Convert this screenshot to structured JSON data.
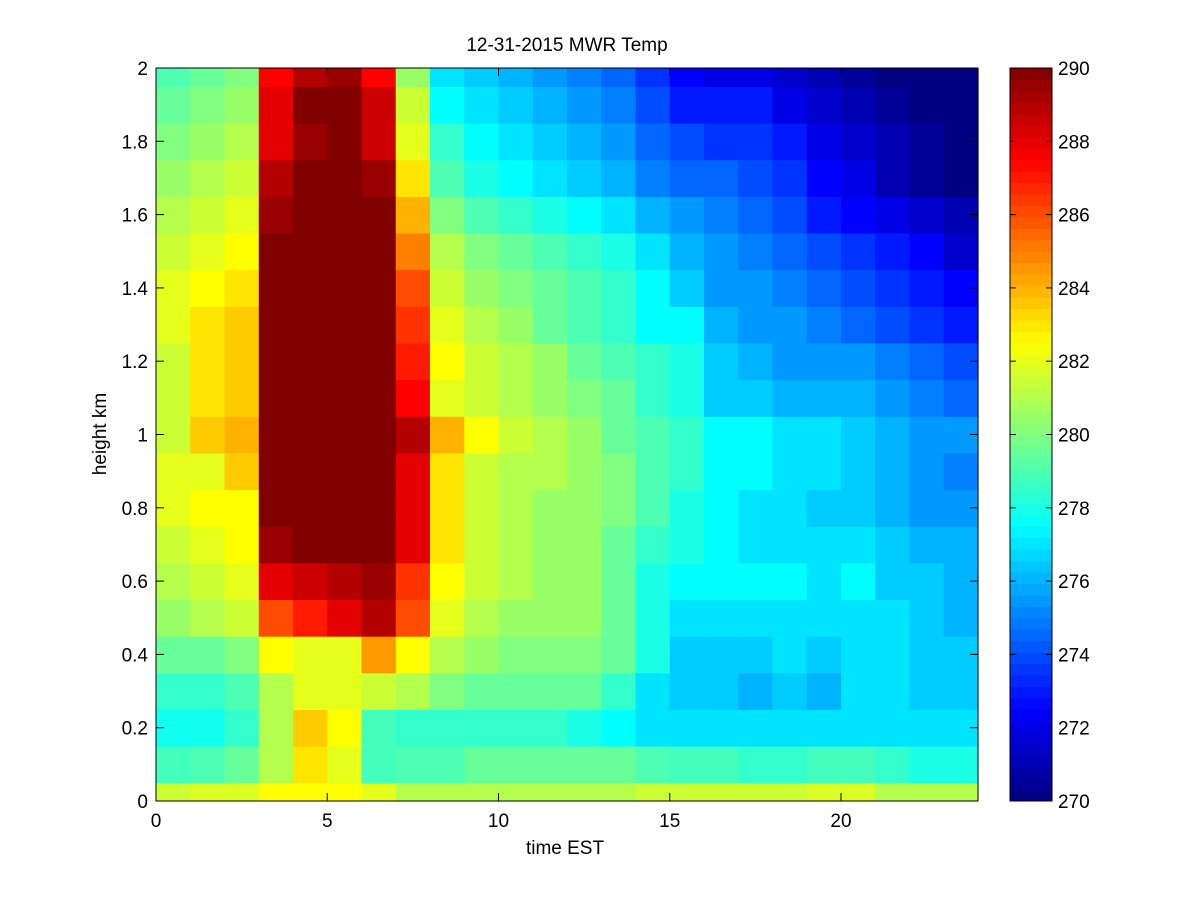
{
  "chart_data": {
    "type": "heatmap",
    "title": "12-31-2015 MWR Temp",
    "xlabel": "time EST",
    "ylabel": "height km",
    "xlim": [
      0,
      24
    ],
    "ylim": [
      0,
      2
    ],
    "xticks": [
      0,
      5,
      10,
      15,
      20
    ],
    "yticks": [
      0,
      0.2,
      0.4,
      0.6,
      0.8,
      1,
      1.2,
      1.4,
      1.6,
      1.8,
      2
    ],
    "colormap": "jet",
    "clim": [
      270,
      290
    ],
    "colorbar_ticks": [
      270,
      272,
      274,
      276,
      278,
      280,
      282,
      284,
      286,
      288,
      290
    ],
    "colorbar_position": "right",
    "grid": false,
    "x_start": 0.0,
    "x_step": 1.0,
    "x_count": 24,
    "y_edges": [
      0,
      0.05,
      0.15,
      0.25,
      0.35,
      0.45,
      0.55,
      0.65,
      0.75,
      0.85,
      0.95,
      1.05,
      1.15,
      1.25,
      1.35,
      1.45,
      1.55,
      1.65,
      1.75,
      1.85,
      1.95,
      2.0
    ],
    "values_by_height_bottom_to_top": [
      [
        281.5,
        281.8,
        281.8,
        282.5,
        282.5,
        282.5,
        282.0,
        281.0,
        281.0,
        281.0,
        281.0,
        281.0,
        281.0,
        281.0,
        281.5,
        281.5,
        281.5,
        281.5,
        281.5,
        281.8,
        281.8,
        281.0,
        281.0,
        281.0
      ],
      [
        278.8,
        279.0,
        279.5,
        281.0,
        283.0,
        282.0,
        278.8,
        279.0,
        279.0,
        279.5,
        279.5,
        279.5,
        279.5,
        279.5,
        279.0,
        278.8,
        278.8,
        278.5,
        278.5,
        278.8,
        278.8,
        278.5,
        278.0,
        278.0
      ],
      [
        277.8,
        277.8,
        278.5,
        281.0,
        283.5,
        282.5,
        278.8,
        278.5,
        278.5,
        278.5,
        278.5,
        278.5,
        278.0,
        277.5,
        277.0,
        277.0,
        277.0,
        277.0,
        277.0,
        277.0,
        277.0,
        277.0,
        277.0,
        277.0
      ],
      [
        278.5,
        278.5,
        279.0,
        281.0,
        282.0,
        282.0,
        281.5,
        281.0,
        280.0,
        279.5,
        279.5,
        279.5,
        279.5,
        278.5,
        277.0,
        276.5,
        276.5,
        276.0,
        276.5,
        276.0,
        277.0,
        277.0,
        276.5,
        276.5
      ],
      [
        279.5,
        279.5,
        280.0,
        282.5,
        282.0,
        282.0,
        284.5,
        282.5,
        281.0,
        280.5,
        280.0,
        280.0,
        280.0,
        279.5,
        278.0,
        276.5,
        276.5,
        276.5,
        277.0,
        276.5,
        277.0,
        277.0,
        276.5,
        276.5
      ],
      [
        280.5,
        281.0,
        281.5,
        286.0,
        287.0,
        288.0,
        289.0,
        286.0,
        282.0,
        281.0,
        280.5,
        280.5,
        280.5,
        279.5,
        278.0,
        277.0,
        277.0,
        277.0,
        277.0,
        277.0,
        277.0,
        277.0,
        276.5,
        276.0
      ],
      [
        281.0,
        281.5,
        282.0,
        288.0,
        288.5,
        289.0,
        289.5,
        286.5,
        282.5,
        281.5,
        281.0,
        280.5,
        280.5,
        279.5,
        278.0,
        277.5,
        277.5,
        277.5,
        277.5,
        277.0,
        277.5,
        276.5,
        276.5,
        276.0
      ],
      [
        281.5,
        282.0,
        282.5,
        289.5,
        290.0,
        290.0,
        290.0,
        288.0,
        283.0,
        281.5,
        281.0,
        280.5,
        280.5,
        279.5,
        278.5,
        278.0,
        277.5,
        277.0,
        277.0,
        277.0,
        277.0,
        276.5,
        276.0,
        276.0
      ],
      [
        282.0,
        282.5,
        282.5,
        290.0,
        290.0,
        290.0,
        290.0,
        288.0,
        283.0,
        281.5,
        281.0,
        280.5,
        280.5,
        280.0,
        279.0,
        278.0,
        277.5,
        277.0,
        277.0,
        276.5,
        276.5,
        276.0,
        275.5,
        275.5
      ],
      [
        282.0,
        282.0,
        283.5,
        290.0,
        290.0,
        290.0,
        290.0,
        288.0,
        283.0,
        281.5,
        281.0,
        281.0,
        280.5,
        280.0,
        279.0,
        278.5,
        277.5,
        277.5,
        277.0,
        277.0,
        276.5,
        276.0,
        275.5,
        275.0
      ],
      [
        281.5,
        283.5,
        284.0,
        290.0,
        290.0,
        290.0,
        290.0,
        289.0,
        284.0,
        282.5,
        281.5,
        281.0,
        280.5,
        279.5,
        279.0,
        278.5,
        277.5,
        277.5,
        277.0,
        277.0,
        276.5,
        276.0,
        275.5,
        275.5
      ],
      [
        281.5,
        283.0,
        283.5,
        290.0,
        290.0,
        290.0,
        290.0,
        287.5,
        282.0,
        281.5,
        281.0,
        280.5,
        280.0,
        279.5,
        278.5,
        278.0,
        276.5,
        276.5,
        276.0,
        276.0,
        276.0,
        275.5,
        275.0,
        274.5
      ],
      [
        281.5,
        283.0,
        283.5,
        290.0,
        290.0,
        290.0,
        290.0,
        287.0,
        282.5,
        281.5,
        281.0,
        280.5,
        279.5,
        279.0,
        278.5,
        278.0,
        276.5,
        276.0,
        275.5,
        275.5,
        275.5,
        275.0,
        274.5,
        274.0
      ],
      [
        282.0,
        283.0,
        283.5,
        290.0,
        290.0,
        290.0,
        290.0,
        286.5,
        282.0,
        281.0,
        280.5,
        279.5,
        279.0,
        278.5,
        277.5,
        277.5,
        276.0,
        275.5,
        275.5,
        275.0,
        274.5,
        274.0,
        273.5,
        273.0
      ],
      [
        282.0,
        282.5,
        283.0,
        290.0,
        290.0,
        290.0,
        290.0,
        286.0,
        281.5,
        280.5,
        280.0,
        279.5,
        279.0,
        278.5,
        277.5,
        276.5,
        275.5,
        275.5,
        275.0,
        274.5,
        274.0,
        273.5,
        273.0,
        272.5
      ],
      [
        281.5,
        282.0,
        282.5,
        290.0,
        290.0,
        290.0,
        290.0,
        285.0,
        281.0,
        280.0,
        279.5,
        279.0,
        278.5,
        278.0,
        277.0,
        276.0,
        275.5,
        275.0,
        274.5,
        274.0,
        273.5,
        273.0,
        272.5,
        271.5
      ],
      [
        281.0,
        281.5,
        282.0,
        289.5,
        290.0,
        290.0,
        290.0,
        284.0,
        280.0,
        279.0,
        278.5,
        278.0,
        277.5,
        277.0,
        276.0,
        275.5,
        275.0,
        274.5,
        274.0,
        273.0,
        272.5,
        272.0,
        271.5,
        271.0
      ],
      [
        280.5,
        281.0,
        281.5,
        289.0,
        290.0,
        290.0,
        289.5,
        283.0,
        279.0,
        278.0,
        277.5,
        277.0,
        276.5,
        276.0,
        275.0,
        274.5,
        274.5,
        274.0,
        273.5,
        272.5,
        272.0,
        271.0,
        270.5,
        270.0
      ],
      [
        280.0,
        280.5,
        281.0,
        288.0,
        289.5,
        290.0,
        288.5,
        282.0,
        278.5,
        277.5,
        277.0,
        276.5,
        276.0,
        275.5,
        274.5,
        274.0,
        273.5,
        273.5,
        273.0,
        272.0,
        271.5,
        271.0,
        270.5,
        270.0
      ],
      [
        279.5,
        280.0,
        280.5,
        288.0,
        290.0,
        290.0,
        288.5,
        281.5,
        277.5,
        277.0,
        276.5,
        276.0,
        275.5,
        275.0,
        274.0,
        273.0,
        273.0,
        273.0,
        272.0,
        271.5,
        271.0,
        270.5,
        270.0,
        270.0
      ],
      [
        279.0,
        279.5,
        280.0,
        287.5,
        289.0,
        289.5,
        287.5,
        280.5,
        277.0,
        276.5,
        276.0,
        275.5,
        275.0,
        274.5,
        273.5,
        272.5,
        272.0,
        272.0,
        271.5,
        271.0,
        270.5,
        270.0,
        270.0,
        270.0
      ]
    ]
  }
}
